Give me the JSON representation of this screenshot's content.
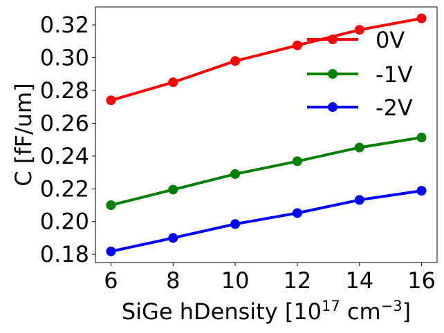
{
  "chart_data": {
    "type": "line",
    "title": "",
    "xlabel": {
      "main": "SiGe hDensity [10",
      "exp1": "17",
      "mid": " cm",
      "exp2": "−3",
      "end": "]"
    },
    "ylabel": "C [fF/um]",
    "x": [
      6,
      8,
      10,
      12,
      14,
      16
    ],
    "xlim": [
      5.5,
      16.5
    ],
    "ylim": [
      0.175,
      0.331
    ],
    "xticks": [
      "6",
      "8",
      "10",
      "12",
      "14",
      "16"
    ],
    "yticks": [
      "0.18",
      "0.20",
      "0.22",
      "0.24",
      "0.26",
      "0.28",
      "0.30",
      "0.32"
    ],
    "grid": false,
    "legend_position": "top-right",
    "series": [
      {
        "name": "0V",
        "color": "#ff0000",
        "values": [
          0.274,
          0.285,
          0.298,
          0.3075,
          0.317,
          0.324
        ]
      },
      {
        "name": "-1V",
        "color": "#008000",
        "values": [
          0.21,
          0.2195,
          0.229,
          0.2368,
          0.2452,
          0.2513
        ]
      },
      {
        "name": "-2V",
        "color": "#0000ff",
        "values": [
          0.1818,
          0.19,
          0.1985,
          0.2052,
          0.2132,
          0.2188
        ]
      }
    ]
  }
}
